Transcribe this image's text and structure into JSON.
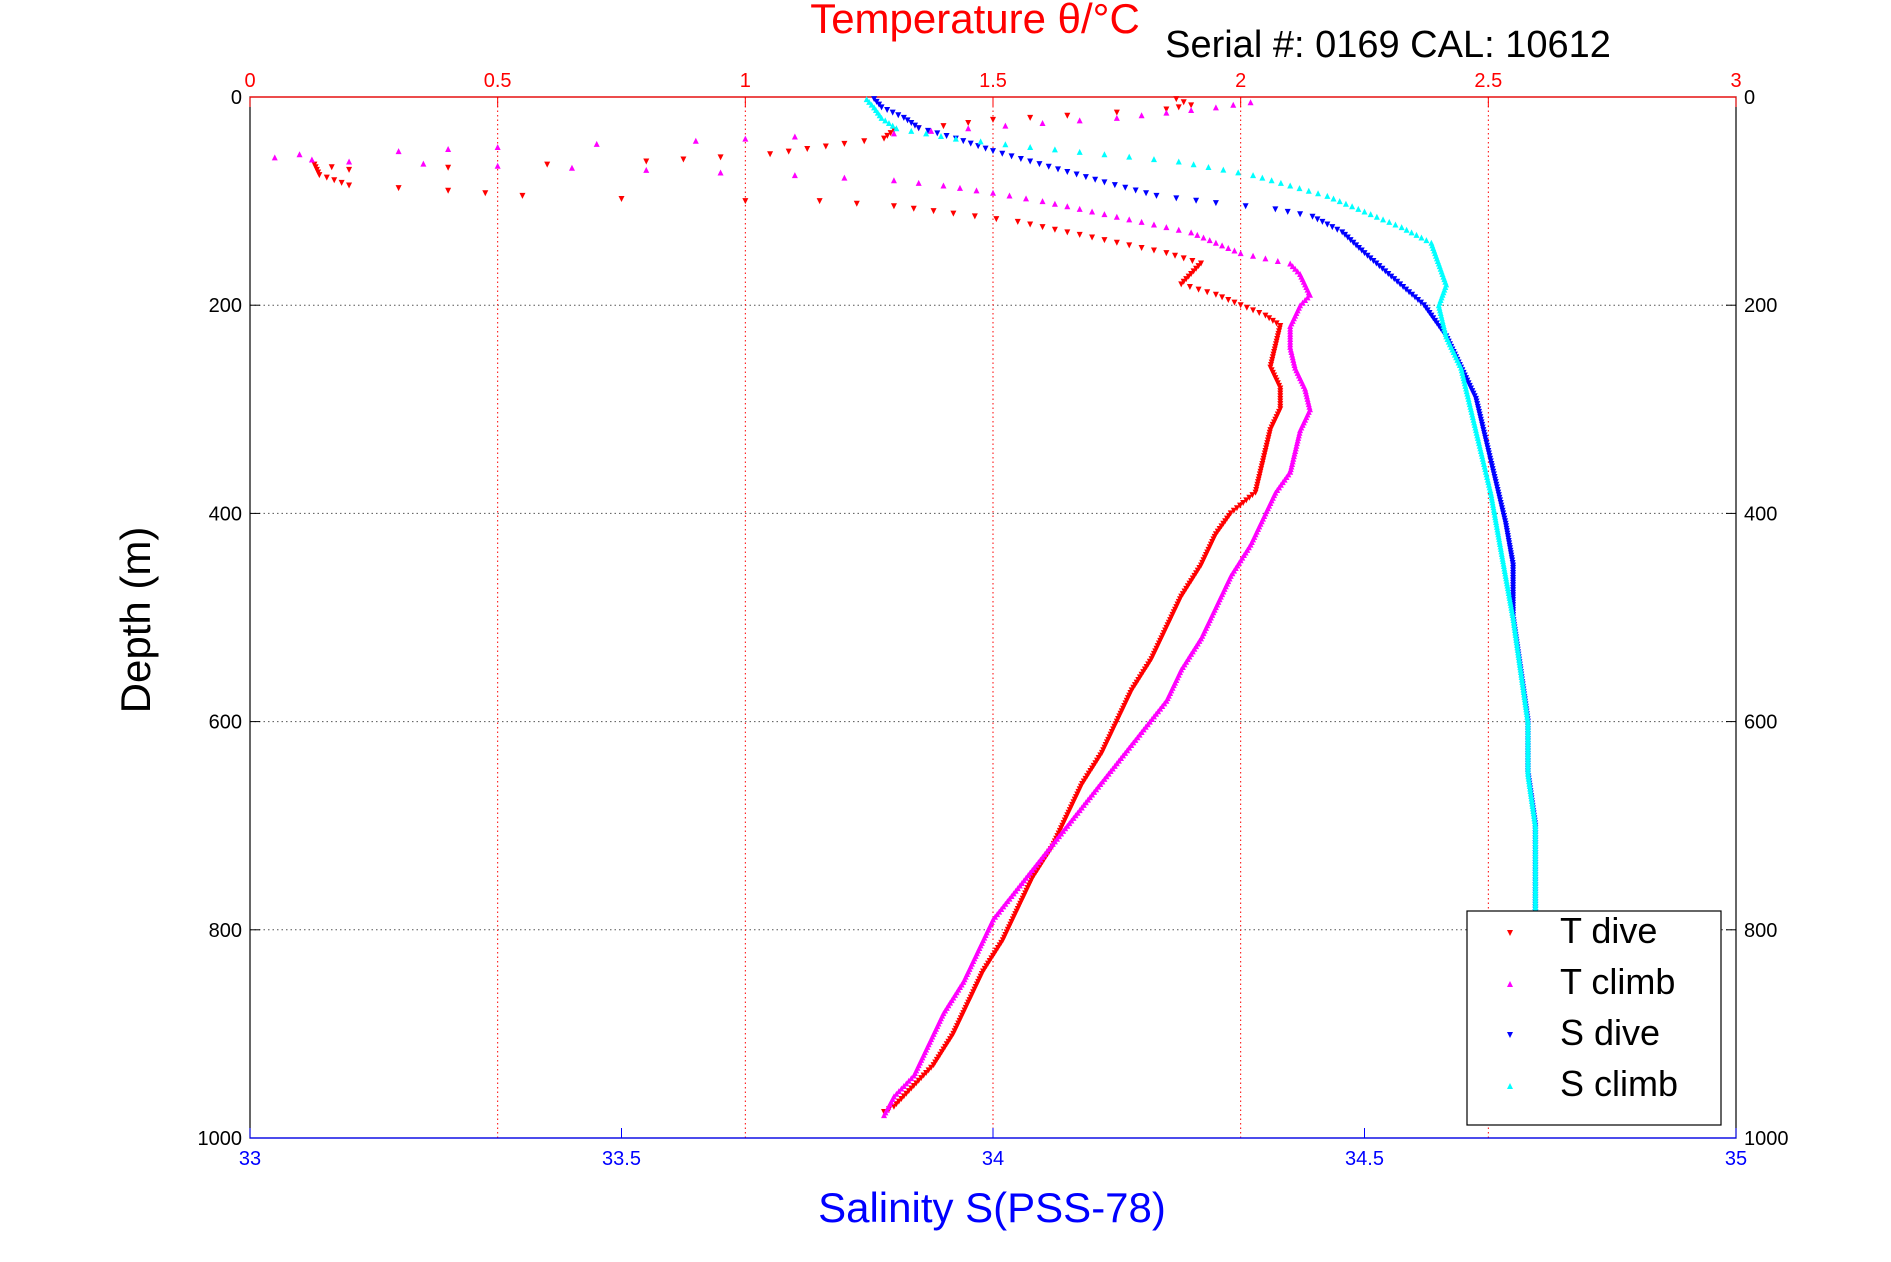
{
  "chart_data": {
    "type": "scatter",
    "title_top": "Temperature θ/°C",
    "serial_label": "Serial #: 0169 CAL: 10612",
    "ylabel": "Depth (m)",
    "xlabel_bottom": "Salinity S(PSS-78)",
    "y_axis": {
      "range": [
        0,
        1000
      ],
      "inverted": true,
      "ticks": [
        "0",
        "200",
        "400",
        "600",
        "800",
        "1000"
      ],
      "tick_values": [
        0,
        200,
        400,
        600,
        800,
        1000
      ]
    },
    "x_axis_top": {
      "quantity": "temperature",
      "range": [
        0,
        3
      ],
      "ticks": [
        "0",
        "0.5",
        "1",
        "1.5",
        "2",
        "2.5",
        "3"
      ],
      "tick_values": [
        0,
        0.5,
        1,
        1.5,
        2,
        2.5,
        3
      ],
      "color": "#ff0000"
    },
    "x_axis_bottom": {
      "quantity": "salinity",
      "range": [
        33,
        35
      ],
      "ticks": [
        "33",
        "33.5",
        "34",
        "34.5",
        "35"
      ],
      "tick_values": [
        33,
        33.5,
        34,
        34.5,
        35
      ],
      "color": "#0000ff"
    },
    "grid": true,
    "legend_position": "bottom-right",
    "series": [
      {
        "name": "T dive",
        "axis": "top",
        "color": "#ff0000",
        "marker": "triangle-down",
        "points": [
          [
            1.87,
            2
          ],
          [
            1.9,
            8
          ],
          [
            1.85,
            12
          ],
          [
            1.75,
            15
          ],
          [
            1.65,
            18
          ],
          [
            1.5,
            22
          ],
          [
            1.4,
            28
          ],
          [
            1.3,
            32
          ],
          [
            1.28,
            40
          ],
          [
            1.2,
            45
          ],
          [
            1.05,
            55
          ],
          [
            0.95,
            58
          ],
          [
            0.8,
            62
          ],
          [
            0.6,
            65
          ],
          [
            0.4,
            68
          ],
          [
            0.2,
            70
          ],
          [
            0.13,
            65
          ],
          [
            0.14,
            75
          ],
          [
            0.2,
            85
          ],
          [
            0.4,
            90
          ],
          [
            0.55,
            95
          ],
          [
            0.75,
            98
          ],
          [
            1.0,
            100
          ],
          [
            1.15,
            100
          ],
          [
            1.3,
            105
          ],
          [
            1.42,
            112
          ],
          [
            1.55,
            120
          ],
          [
            1.65,
            130
          ],
          [
            1.75,
            140
          ],
          [
            1.85,
            150
          ],
          [
            1.92,
            160
          ],
          [
            1.9,
            170
          ],
          [
            1.88,
            180
          ],
          [
            1.95,
            190
          ],
          [
            2.0,
            200
          ],
          [
            2.05,
            210
          ],
          [
            2.08,
            220
          ],
          [
            2.07,
            240
          ],
          [
            2.06,
            260
          ],
          [
            2.08,
            280
          ],
          [
            2.08,
            300
          ],
          [
            2.06,
            320
          ],
          [
            2.05,
            340
          ],
          [
            2.04,
            360
          ],
          [
            2.03,
            380
          ],
          [
            1.98,
            400
          ],
          [
            1.95,
            420
          ],
          [
            1.92,
            450
          ],
          [
            1.88,
            480
          ],
          [
            1.85,
            510
          ],
          [
            1.82,
            540
          ],
          [
            1.78,
            570
          ],
          [
            1.75,
            600
          ],
          [
            1.72,
            630
          ],
          [
            1.68,
            660
          ],
          [
            1.65,
            690
          ],
          [
            1.62,
            720
          ],
          [
            1.58,
            750
          ],
          [
            1.55,
            780
          ],
          [
            1.52,
            810
          ],
          [
            1.48,
            840
          ],
          [
            1.45,
            870
          ],
          [
            1.42,
            900
          ],
          [
            1.38,
            930
          ],
          [
            1.33,
            955
          ],
          [
            1.3,
            970
          ],
          [
            1.28,
            975
          ]
        ]
      },
      {
        "name": "T climb",
        "axis": "top",
        "color": "#ff00ff",
        "marker": "triangle-up",
        "points": [
          [
            2.02,
            5
          ],
          [
            1.95,
            10
          ],
          [
            1.85,
            15
          ],
          [
            1.75,
            20
          ],
          [
            1.6,
            25
          ],
          [
            1.45,
            30
          ],
          [
            1.3,
            35
          ],
          [
            1.1,
            38
          ],
          [
            0.9,
            42
          ],
          [
            0.7,
            45
          ],
          [
            0.5,
            48
          ],
          [
            0.3,
            52
          ],
          [
            0.1,
            55
          ],
          [
            0.05,
            58
          ],
          [
            0.2,
            62
          ],
          [
            0.5,
            66
          ],
          [
            0.8,
            70
          ],
          [
            1.1,
            75
          ],
          [
            1.3,
            80
          ],
          [
            1.4,
            85
          ],
          [
            1.5,
            92
          ],
          [
            1.6,
            100
          ],
          [
            1.7,
            110
          ],
          [
            1.8,
            120
          ],
          [
            1.9,
            130
          ],
          [
            1.95,
            140
          ],
          [
            2.0,
            150
          ],
          [
            2.1,
            160
          ],
          [
            2.12,
            170
          ],
          [
            2.13,
            180
          ],
          [
            2.14,
            190
          ],
          [
            2.12,
            200
          ],
          [
            2.1,
            220
          ],
          [
            2.1,
            240
          ],
          [
            2.11,
            260
          ],
          [
            2.13,
            280
          ],
          [
            2.14,
            300
          ],
          [
            2.12,
            320
          ],
          [
            2.11,
            340
          ],
          [
            2.1,
            360
          ],
          [
            2.07,
            380
          ],
          [
            2.05,
            400
          ],
          [
            2.02,
            430
          ],
          [
            1.98,
            460
          ],
          [
            1.95,
            490
          ],
          [
            1.92,
            520
          ],
          [
            1.88,
            550
          ],
          [
            1.85,
            580
          ],
          [
            1.8,
            610
          ],
          [
            1.75,
            640
          ],
          [
            1.7,
            670
          ],
          [
            1.65,
            700
          ],
          [
            1.6,
            730
          ],
          [
            1.55,
            760
          ],
          [
            1.5,
            790
          ],
          [
            1.47,
            820
          ],
          [
            1.44,
            850
          ],
          [
            1.4,
            880
          ],
          [
            1.37,
            910
          ],
          [
            1.34,
            940
          ],
          [
            1.3,
            960
          ],
          [
            1.28,
            978
          ]
        ]
      },
      {
        "name": "S dive",
        "axis": "bottom",
        "color": "#0000ff",
        "marker": "triangle-down",
        "points": [
          [
            33.84,
            2
          ],
          [
            33.85,
            10
          ],
          [
            33.88,
            20
          ],
          [
            33.9,
            30
          ],
          [
            33.95,
            40
          ],
          [
            34.0,
            52
          ],
          [
            34.05,
            62
          ],
          [
            34.1,
            72
          ],
          [
            34.15,
            82
          ],
          [
            34.22,
            95
          ],
          [
            34.3,
            102
          ],
          [
            34.38,
            108
          ],
          [
            34.43,
            115
          ],
          [
            34.47,
            130
          ],
          [
            34.5,
            150
          ],
          [
            34.54,
            175
          ],
          [
            34.58,
            200
          ],
          [
            34.61,
            230
          ],
          [
            34.63,
            260
          ],
          [
            34.65,
            290
          ],
          [
            34.66,
            320
          ],
          [
            34.67,
            350
          ],
          [
            34.68,
            380
          ],
          [
            34.69,
            410
          ],
          [
            34.7,
            450
          ],
          [
            34.7,
            500
          ],
          [
            34.71,
            550
          ],
          [
            34.72,
            600
          ],
          [
            34.72,
            650
          ],
          [
            34.73,
            700
          ],
          [
            34.73,
            750
          ],
          [
            34.73,
            790
          ]
        ]
      },
      {
        "name": "S climb",
        "axis": "bottom",
        "color": "#00ffff",
        "marker": "triangle-up",
        "points": [
          [
            33.83,
            2
          ],
          [
            33.84,
            10
          ],
          [
            33.85,
            20
          ],
          [
            33.87,
            30
          ],
          [
            33.95,
            40
          ],
          [
            34.05,
            48
          ],
          [
            34.15,
            55
          ],
          [
            34.25,
            62
          ],
          [
            34.35,
            75
          ],
          [
            34.4,
            85
          ],
          [
            34.45,
            95
          ],
          [
            34.5,
            110
          ],
          [
            34.55,
            125
          ],
          [
            34.59,
            140
          ],
          [
            34.6,
            160
          ],
          [
            34.61,
            180
          ],
          [
            34.6,
            200
          ],
          [
            34.61,
            230
          ],
          [
            34.63,
            260
          ],
          [
            34.64,
            290
          ],
          [
            34.65,
            320
          ],
          [
            34.66,
            350
          ],
          [
            34.67,
            380
          ],
          [
            34.68,
            420
          ],
          [
            34.69,
            460
          ],
          [
            34.7,
            500
          ],
          [
            34.71,
            550
          ],
          [
            34.72,
            600
          ],
          [
            34.72,
            650
          ],
          [
            34.73,
            700
          ],
          [
            34.73,
            750
          ],
          [
            34.73,
            790
          ]
        ]
      }
    ]
  }
}
